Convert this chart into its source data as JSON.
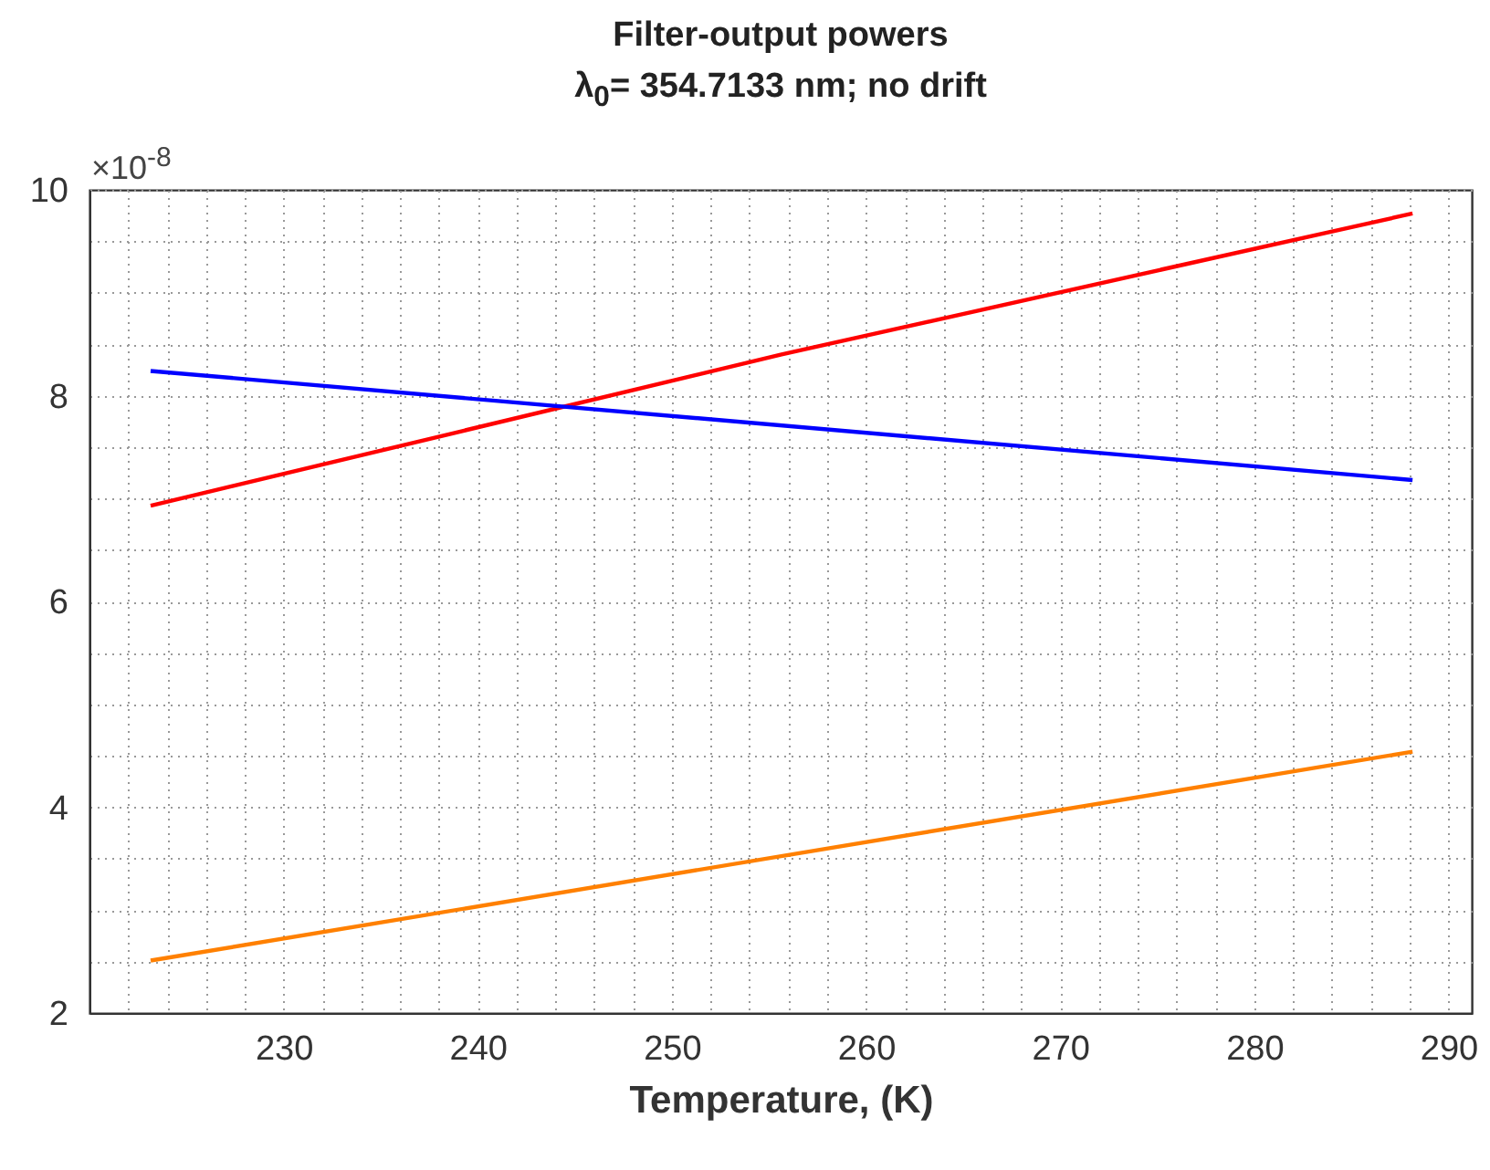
{
  "chart_data": {
    "type": "line",
    "title": "Filter-output powers",
    "subtitle": "λ$_{0}$= 354.7133 nm; no drift",
    "xlabel": "Temperature, (K)",
    "annotations": [
      "×10$^{-8}$"
    ],
    "xlim": [
      220,
      291.2
    ],
    "xticks": [
      {
        "value": 222,
        "label": null
      },
      {
        "value": 224,
        "label": null
      },
      {
        "value": 226,
        "label": null
      },
      {
        "value": 228,
        "label": null
      },
      230,
      {
        "value": 232,
        "label": null
      },
      {
        "value": 234,
        "label": null
      },
      {
        "value": 236,
        "label": null
      },
      {
        "value": 238,
        "label": null
      },
      240,
      {
        "value": 242,
        "label": null
      },
      {
        "value": 244,
        "label": null
      },
      {
        "value": 246,
        "label": null
      },
      {
        "value": 248,
        "label": null
      },
      250,
      {
        "value": 252,
        "label": null
      },
      {
        "value": 254,
        "label": null
      },
      {
        "value": 256,
        "label": null
      },
      {
        "value": 258,
        "label": null
      },
      260,
      {
        "value": 262,
        "label": null
      },
      {
        "value": 264,
        "label": null
      },
      {
        "value": 266,
        "label": null
      },
      {
        "value": 268,
        "label": null
      },
      270,
      {
        "value": 272,
        "label": null
      },
      {
        "value": 274,
        "label": null
      },
      {
        "value": 276,
        "label": null
      },
      {
        "value": 278,
        "label": null
      },
      280,
      {
        "value": 282,
        "label": null
      },
      {
        "value": 284,
        "label": null
      },
      {
        "value": 286,
        "label": null
      },
      {
        "value": 288,
        "label": null
      },
      290
    ],
    "ylim": [
      2,
      10
    ],
    "yticks": [
      2,
      {
        "value": 2.5,
        "label": null
      },
      {
        "value": 3,
        "label": null
      },
      {
        "value": 3.5,
        "label": null
      },
      4,
      {
        "value": 4.5,
        "label": null
      },
      {
        "value": 5,
        "label": null
      },
      {
        "value": 5.5,
        "label": null
      },
      6,
      {
        "value": 6.5,
        "label": null
      },
      {
        "value": 7,
        "label": null
      },
      {
        "value": 7.5,
        "label": null
      },
      8,
      {
        "value": 8.5,
        "label": null
      },
      {
        "value": 9,
        "label": null
      },
      {
        "value": 9.5,
        "label": null
      },
      10
    ],
    "grid": true,
    "series": [
      {
        "color": "#ff0000",
        "x": [
          223.15,
          255.65,
          288.15
        ],
        "values": [
          6.93,
          8.4,
          9.77
        ]
      },
      {
        "color": "#0000ff",
        "x": [
          223.15,
          288.15
        ],
        "values": [
          8.24,
          7.18
        ]
      },
      {
        "color": "#ff8000",
        "x": [
          223.15,
          288.15
        ],
        "values": [
          2.51,
          4.54
        ]
      }
    ]
  }
}
